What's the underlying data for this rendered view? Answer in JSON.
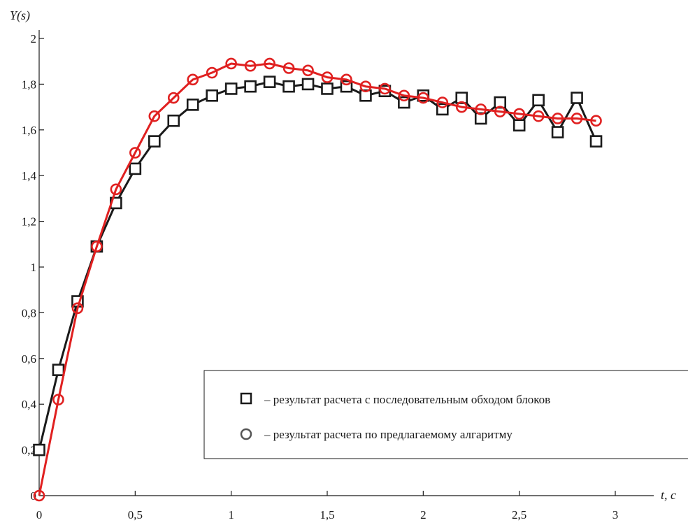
{
  "chart_data": {
    "type": "line",
    "ylabel": "Y(s)",
    "xlabel": "t, c",
    "xlim": [
      0,
      3
    ],
    "ylim": [
      0,
      2
    ],
    "x_ticks": [
      "0",
      "0,5",
      "1",
      "1,5",
      "2",
      "2,5",
      "3"
    ],
    "y_ticks": [
      "0",
      "0,2",
      "0,4",
      "0,6",
      "0,8",
      "1",
      "1,2",
      "1,4",
      "1,6",
      "1,8",
      "2"
    ],
    "grid": false,
    "legend_position": "bottom-right",
    "series": [
      {
        "name": "– результат расчета с последовательным обходом блоков",
        "marker": "square",
        "color": "#1a1a1a",
        "x": [
          0,
          0.1,
          0.2,
          0.3,
          0.4,
          0.5,
          0.6,
          0.7,
          0.8,
          0.9,
          1.0,
          1.1,
          1.2,
          1.3,
          1.4,
          1.5,
          1.6,
          1.7,
          1.8,
          1.9,
          2.0,
          2.1,
          2.2,
          2.3,
          2.4,
          2.5,
          2.6,
          2.7,
          2.8,
          2.9
        ],
        "y": [
          0.2,
          0.55,
          0.85,
          1.09,
          1.28,
          1.43,
          1.55,
          1.64,
          1.71,
          1.75,
          1.78,
          1.79,
          1.81,
          1.79,
          1.8,
          1.78,
          1.79,
          1.75,
          1.77,
          1.72,
          1.75,
          1.69,
          1.74,
          1.65,
          1.72,
          1.62,
          1.73,
          1.59,
          1.74,
          1.55
        ]
      },
      {
        "name": "– результат расчета по предлагаемому алгаритму",
        "marker": "circle",
        "color": "#e02020",
        "x": [
          0,
          0.1,
          0.2,
          0.3,
          0.4,
          0.5,
          0.6,
          0.7,
          0.8,
          0.9,
          1.0,
          1.1,
          1.2,
          1.3,
          1.4,
          1.5,
          1.6,
          1.7,
          1.8,
          1.9,
          2.0,
          2.1,
          2.2,
          2.3,
          2.4,
          2.5,
          2.6,
          2.7,
          2.8,
          2.9
        ],
        "y": [
          0.0,
          0.42,
          0.82,
          1.09,
          1.34,
          1.5,
          1.66,
          1.74,
          1.82,
          1.85,
          1.89,
          1.88,
          1.89,
          1.87,
          1.86,
          1.83,
          1.82,
          1.79,
          1.78,
          1.75,
          1.74,
          1.72,
          1.7,
          1.69,
          1.68,
          1.67,
          1.66,
          1.65,
          1.65,
          1.64
        ]
      }
    ]
  },
  "legend": {
    "items": [
      {
        "marker": "square",
        "label": "– результат расчета с последовательным обходом блоков"
      },
      {
        "marker": "circle",
        "label": "– результат расчета по предлагаемому алгаритму"
      }
    ]
  }
}
